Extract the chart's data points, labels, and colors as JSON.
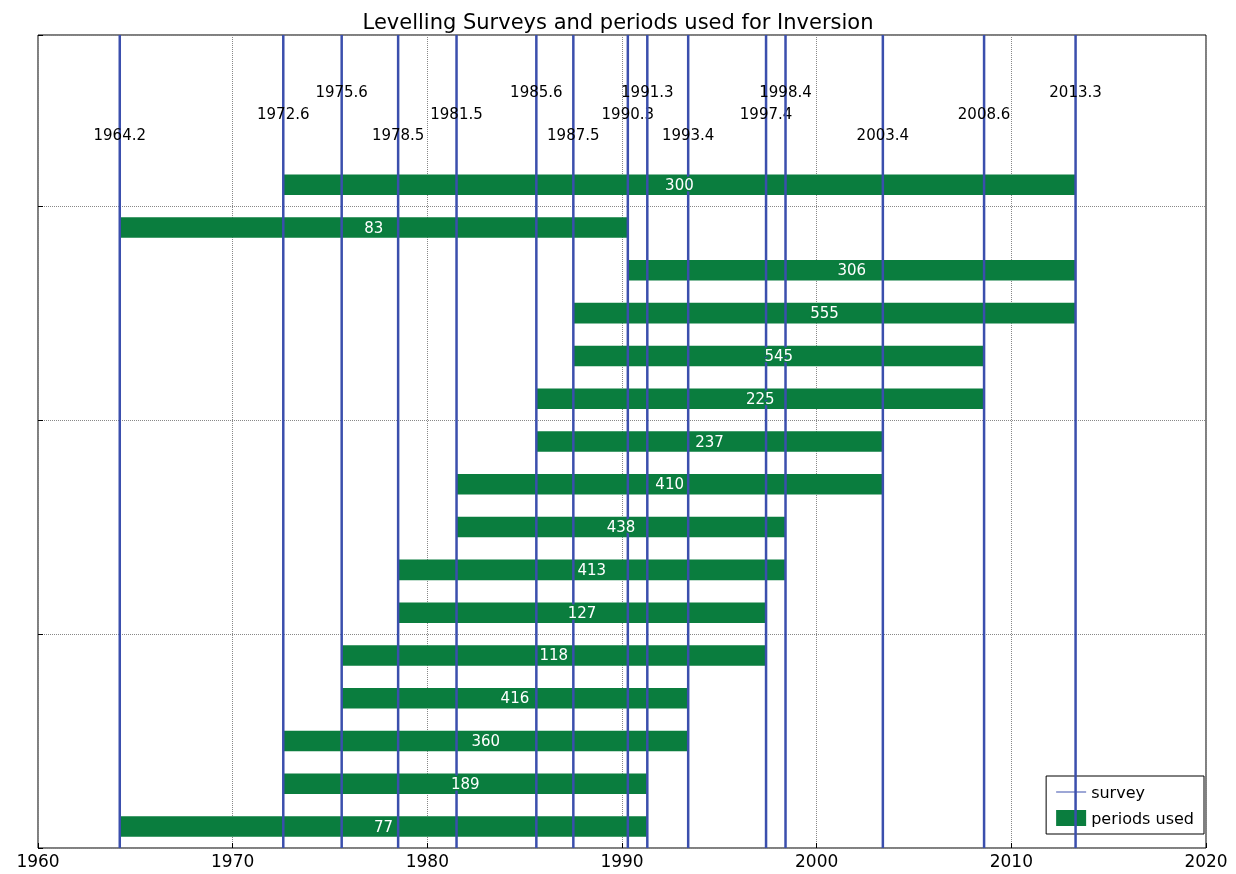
{
  "chart_data": {
    "type": "bar",
    "orientation": "horizontal",
    "title": "Levelling Surveys and periods used for Inversion",
    "categories": [
      null,
      null,
      null,
      null,
      null,
      null,
      null,
      null,
      null,
      null,
      null,
      null,
      null,
      null,
      null,
      null,
      null,
      null,
      null
    ],
    "series": [
      {
        "name": "periods used",
        "color": "#0a7d3e",
        "base": [
          null,
          null,
          null,
          1972.6,
          1964.2,
          1990.3,
          1987.5,
          1987.5,
          1985.6,
          1985.6,
          1981.5,
          1981.5,
          1978.5,
          1978.5,
          1975.6,
          1975.6,
          1972.6,
          1972.6,
          1964.2
        ],
        "values": [
          null,
          null,
          null,
          40.7,
          26.1,
          23.0,
          25.8,
          21.1,
          23.0,
          17.8,
          21.9,
          16.9,
          19.9,
          18.9,
          21.8,
          17.8,
          20.8,
          18.7,
          27.1
        ]
      },
      {
        "name": "survey",
        "type": "line",
        "color": "#3b4fad",
        "values": [
          null,
          null,
          null,
          null,
          null,
          null,
          null,
          null,
          null,
          null,
          null,
          null,
          null,
          null,
          null,
          null,
          null,
          null,
          null
        ]
      }
    ],
    "annotations": [
      "300",
      "83",
      "306",
      "555",
      "545",
      "225",
      "237",
      "410",
      "438",
      "413",
      "127",
      "118",
      "416",
      "360",
      "189",
      "77"
    ],
    "ref_lines": [
      {
        "axis": "x",
        "value": 1964.2,
        "label": "1964.2"
      },
      {
        "axis": "x",
        "value": 1972.6,
        "label": "1972.6"
      },
      {
        "axis": "x",
        "value": 1975.6,
        "label": "1975.6"
      },
      {
        "axis": "x",
        "value": 1978.5,
        "label": "1978.5"
      },
      {
        "axis": "x",
        "value": 1981.5,
        "label": "1981.5"
      },
      {
        "axis": "x",
        "value": 1985.6,
        "label": "1985.6"
      },
      {
        "axis": "x",
        "value": 1987.5,
        "label": "1987.5"
      },
      {
        "axis": "x",
        "value": 1990.3,
        "label": "1990.3"
      },
      {
        "axis": "x",
        "value": 1991.3,
        "label": "1991.3"
      },
      {
        "axis": "x",
        "value": 1993.4,
        "label": "1993.4"
      },
      {
        "axis": "x",
        "value": 1997.4,
        "label": "1997.4"
      },
      {
        "axis": "x",
        "value": 1998.4,
        "label": "1998.4"
      },
      {
        "axis": "x",
        "value": 2003.4,
        "label": "2003.4"
      },
      {
        "axis": "x",
        "value": 2008.6,
        "label": "2008.6"
      },
      {
        "axis": "x",
        "value": 2013.3,
        "label": "2013.3"
      }
    ],
    "xlim": [
      1960,
      2020
    ],
    "xticks": [
      1960,
      1970,
      1980,
      1990,
      2000,
      2010,
      2020
    ],
    "grid": true,
    "legend": "bottom right",
    "tick_labels": "x"
  }
}
